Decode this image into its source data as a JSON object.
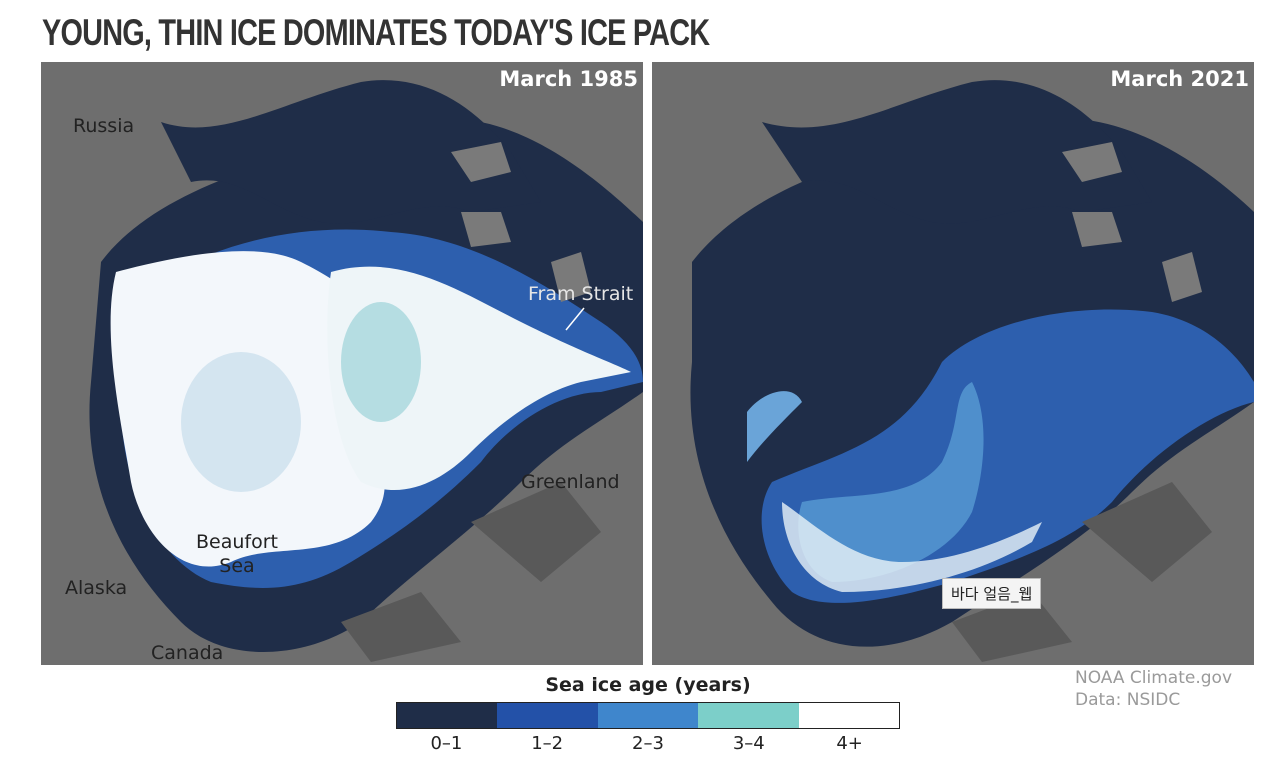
{
  "header": {
    "title": "YOUNG, THIN ICE DOMINATES TODAY'S ICE PACK"
  },
  "maps": [
    {
      "label": "March 1985",
      "places": [
        "Russia",
        "Fram Strait",
        "Greenland",
        [
          "Beaufort",
          "Sea"
        ],
        "Alaska",
        "Canada"
      ]
    },
    {
      "label": "March 2021"
    }
  ],
  "tooltip": "바다 얼음_웹",
  "legend": {
    "title": "Sea ice age (years)",
    "items": [
      {
        "label": "0–1",
        "color": "#1f2d48"
      },
      {
        "label": "1–2",
        "color": "#2351a8"
      },
      {
        "label": "2–3",
        "color": "#3f86cc"
      },
      {
        "label": "3–4",
        "color": "#7ccfc9"
      },
      {
        "label": "4+",
        "color": "#ffffff"
      }
    ]
  },
  "credits": [
    "NOAA Climate.gov",
    "Data: NSIDC"
  ]
}
